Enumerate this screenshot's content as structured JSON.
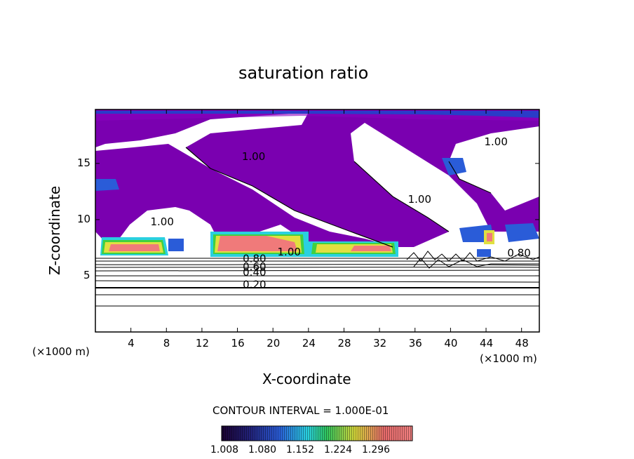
{
  "chart_data": {
    "type": "contour",
    "title": "saturation ratio",
    "xlabel": "X-coordinate",
    "ylabel": "Z-coordinate",
    "x_unit_left": "(×1000 m)",
    "x_unit_right": "(×1000 m)",
    "xlim": [
      0,
      50
    ],
    "ylim": [
      0,
      19.8
    ],
    "x_ticks": [
      4,
      8,
      12,
      16,
      20,
      24,
      28,
      32,
      36,
      40,
      44,
      48
    ],
    "y_ticks": [
      5,
      10,
      15
    ],
    "contour_labels": [
      {
        "text": "1.00",
        "x": 16.5,
        "z": 15.3
      },
      {
        "text": "1.00",
        "x": 35.2,
        "z": 11.5
      },
      {
        "text": "1.00",
        "x": 43.8,
        "z": 16.6
      },
      {
        "text": "1.00",
        "x": 6.2,
        "z": 9.5
      },
      {
        "text": "1.00",
        "x": 20.5,
        "z": 6.8
      },
      {
        "text": "0.80",
        "x": 46.4,
        "z": 6.7
      },
      {
        "text": "0.80",
        "x": 16.6,
        "z": 6.2
      },
      {
        "text": "0.60",
        "x": 16.6,
        "z": 5.5
      },
      {
        "text": "0.40",
        "x": 16.6,
        "z": 5.0
      },
      {
        "text": "0.20",
        "x": 16.6,
        "z": 3.9
      }
    ],
    "colorbar": {
      "title": "CONTOUR INTERVAL = 1.000E-01",
      "tick_labels": [
        "1.008",
        "1.080",
        "1.152",
        "1.224",
        "1.296"
      ],
      "colors": [
        "#1a0030",
        "#22227a",
        "#2a5cd8",
        "#2a9fd0",
        "#2fc45e",
        "#d6d63a",
        "#e66a6a",
        "#f08080"
      ]
    },
    "colors": {
      "purple": "#7a00b0",
      "blue": "#2a5cd8",
      "cyan": "#2ad0e0",
      "green": "#40d040",
      "yellow": "#e0e040",
      "red": "#f07a7a"
    }
  }
}
